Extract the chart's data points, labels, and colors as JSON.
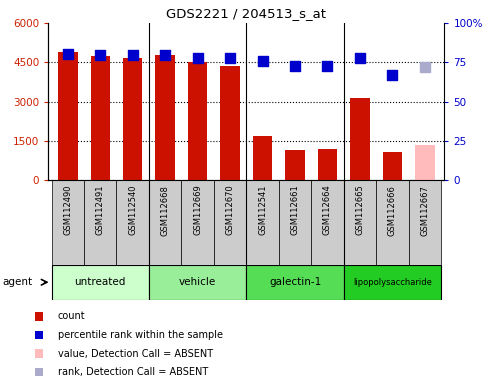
{
  "title": "GDS2221 / 204513_s_at",
  "samples": [
    "GSM112490",
    "GSM112491",
    "GSM112540",
    "GSM112668",
    "GSM112669",
    "GSM112670",
    "GSM112541",
    "GSM112661",
    "GSM112664",
    "GSM112665",
    "GSM112666",
    "GSM112667"
  ],
  "counts": [
    4900,
    4750,
    4650,
    4800,
    4500,
    4350,
    1700,
    1150,
    1200,
    3150,
    1100,
    null
  ],
  "counts_absent": [
    null,
    null,
    null,
    null,
    null,
    null,
    null,
    null,
    null,
    null,
    null,
    1350
  ],
  "percentile_ranks": [
    80.5,
    80,
    79.5,
    80,
    78,
    78,
    76,
    72.5,
    72.5,
    78,
    67,
    null
  ],
  "percentile_absent": [
    null,
    null,
    null,
    null,
    null,
    null,
    null,
    null,
    null,
    null,
    null,
    72
  ],
  "groups": [
    {
      "label": "untreated",
      "start": 0,
      "end": 3,
      "color": "#ccffcc"
    },
    {
      "label": "vehicle",
      "start": 3,
      "end": 6,
      "color": "#99ee99"
    },
    {
      "label": "galectin-1",
      "start": 6,
      "end": 9,
      "color": "#55dd55"
    },
    {
      "label": "lipopolysaccharide",
      "start": 9,
      "end": 12,
      "color": "#22cc22"
    }
  ],
  "ylim_left": [
    0,
    6000
  ],
  "ylim_right": [
    0,
    100
  ],
  "yticks_left": [
    0,
    1500,
    3000,
    4500,
    6000
  ],
  "ytick_labels_left": [
    "0",
    "1500",
    "3000",
    "4500",
    "6000"
  ],
  "yticks_right": [
    0,
    25,
    50,
    75,
    100
  ],
  "ytick_labels_right": [
    "0",
    "25",
    "50",
    "75",
    "100%"
  ],
  "bar_color": "#cc1100",
  "bar_absent_color": "#ffbbbb",
  "dot_color": "#0000cc",
  "dot_absent_color": "#aaaacc",
  "tick_area_color": "#cccccc",
  "group_sep_color": "#000000",
  "bar_width": 0.6,
  "dot_size": 55,
  "group_boundaries": [
    3,
    6,
    9
  ]
}
